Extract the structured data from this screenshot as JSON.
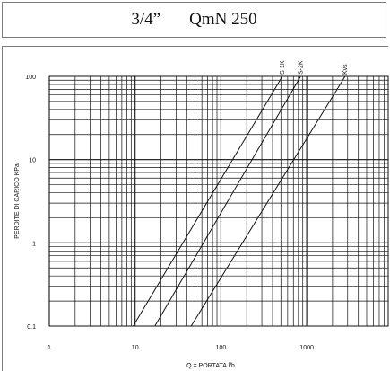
{
  "header": {
    "size": "3/4”",
    "flow": "QmN 250"
  },
  "chart_data": {
    "type": "line",
    "xlabel": "Q = PORTATA l/h",
    "ylabel": "PERDITE DI CARICO KPa",
    "xscale": "log",
    "yscale": "log",
    "xlim": [
      1,
      1000
    ],
    "ylim": [
      0.1,
      100
    ],
    "x_ticks": [
      "1",
      "10",
      "100",
      "1000"
    ],
    "y_ticks": [
      "0.1",
      "1",
      "10",
      "100"
    ],
    "grid": true,
    "series": [
      {
        "name": "S-1K",
        "points": [
          [
            9.5,
            0.1
          ],
          [
            520,
            100
          ]
        ]
      },
      {
        "name": "S-2K",
        "points": [
          [
            17,
            0.1
          ],
          [
            850,
            100
          ]
        ]
      },
      {
        "name": "Kvs",
        "points": [
          [
            45,
            0.1
          ],
          [
            2800,
            100
          ]
        ]
      }
    ]
  }
}
